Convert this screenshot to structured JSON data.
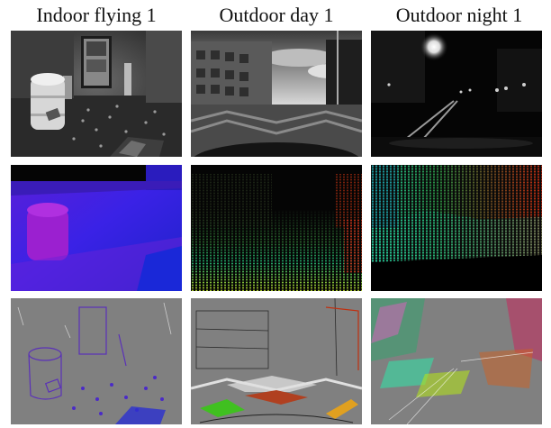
{
  "columns": [
    {
      "title": "Indoor flying 1"
    },
    {
      "title": "Outdoor day 1"
    },
    {
      "title": "Outdoor night 1"
    }
  ],
  "rows": [
    {
      "content": "grayscale camera frame"
    },
    {
      "content": "ground-truth depth, color coded"
    },
    {
      "content": "event-based depth estimate, color coded"
    }
  ],
  "colors": {
    "background": "#ffffff",
    "event_background": "#808080",
    "depth_near": "#9a1fd0",
    "depth_mid": "#3020e0",
    "depth_far": "#d02010"
  }
}
